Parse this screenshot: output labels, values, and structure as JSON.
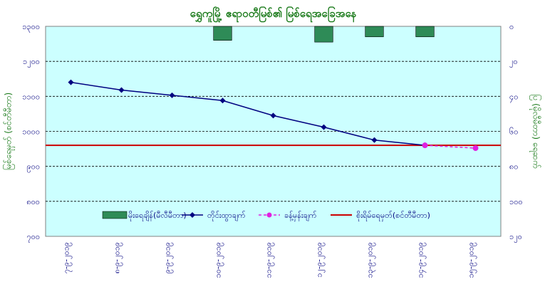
{
  "chart_data": {
    "type": "bar+line",
    "title": "ရွှေကူမြို့ ဧရာဝတီမြစ်၏ မြစ်ရေအခြေအနေ",
    "ylabel_left": "မြစ်ရေမှတ် (စင်တီမီတာ)",
    "ylabel_right": "ပြ (မိုလီမီတာ) ရေဆက်",
    "y_left": {
      "min": 700,
      "max": 1300,
      "ticks": [
        700,
        800,
        900,
        1000,
        1100,
        1200,
        1300
      ],
      "tick_labels": [
        "၇၀၀",
        "၈၀၀",
        "၉၀၀",
        "၁၀၀၀",
        "၁၁၀၀",
        "၁၂၀၀",
        "၁၃၀၀"
      ]
    },
    "y_right": {
      "min": 0,
      "max": 120,
      "inverted": true,
      "ticks": [
        0,
        20,
        40,
        60,
        80,
        100,
        120
      ],
      "tick_labels": [
        "၀",
        "၂၀",
        "၄၀",
        "၆၀",
        "၈၀",
        "၁၀၀",
        "၁၂၀"
      ]
    },
    "categories": [
      "၇-၉-၂၀၁၉",
      "၈-၉-၂၀၁၉",
      "၉-၉-၂၀၁၉",
      "၁၀-၉-၂၀၁၉",
      "၁၁-၉-၂၀၁၉",
      "၁၂-၉-၂၀၁၉",
      "၁၃-၉-၂၀၁၉",
      "၁၄-၉-၂၀၁၉",
      "၁၅-၉-၂၀၁၉"
    ],
    "series": [
      {
        "name": "မိုးရေချိန်(မီလီမီတာ)",
        "kind": "bar",
        "axis": "right",
        "color": "#2e8b57",
        "values": [
          0,
          0,
          0,
          8,
          0,
          9,
          6,
          6,
          0
        ]
      },
      {
        "name": "တိုင်းထွာချက်",
        "kind": "line",
        "axis": "left",
        "color": "#000080",
        "values": [
          1140,
          1118,
          1103,
          1088,
          1045,
          1012,
          975,
          960,
          null
        ]
      },
      {
        "name": "ခန့်မှန်းချက်",
        "kind": "dashed-line",
        "axis": "left",
        "color": "#e020e0",
        "values": [
          null,
          null,
          null,
          null,
          null,
          null,
          null,
          960,
          952
        ]
      },
      {
        "name": "စိုးရိမ်ရေမှတ်(စင်တီမီတာ)",
        "kind": "hline",
        "axis": "left",
        "color": "#cc0000",
        "value": 960
      }
    ],
    "grid": true,
    "legend_position": "bottom-inside",
    "plot_background": "#ccffff"
  }
}
